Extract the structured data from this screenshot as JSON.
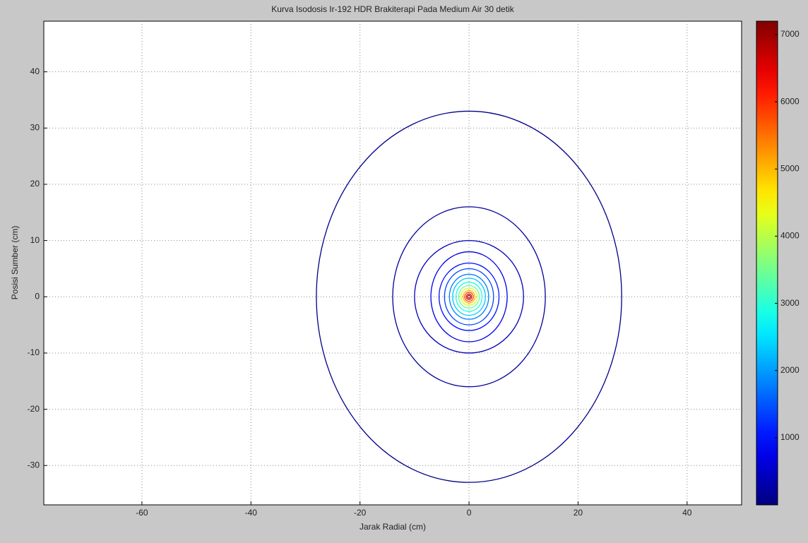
{
  "chart_data": {
    "type": "contour",
    "title": "Kurva Isodosis Ir-192 HDR Brakiterapi Pada Medium Air 30 detik",
    "x_label": "Jarak Radial (cm)",
    "y_label": "Posisi Sumber (cm)",
    "xlim": [
      -78,
      50
    ],
    "ylim": [
      -37,
      49
    ],
    "xticks": [
      -60,
      -40,
      -20,
      0,
      20,
      40
    ],
    "yticks": [
      -30,
      -20,
      -10,
      0,
      10,
      20,
      30,
      40
    ],
    "grid": true,
    "colormap": "jet",
    "clim": [
      0,
      7200
    ],
    "colorbar_ticks": [
      1000,
      2000,
      3000,
      4000,
      5000,
      6000,
      7000
    ],
    "contours": [
      {
        "level": 60,
        "rx": 28,
        "ry": 33
      },
      {
        "level": 200,
        "rx": 14,
        "ry": 16
      },
      {
        "level": 400,
        "rx": 10,
        "ry": 10
      },
      {
        "level": 700,
        "rx": 7,
        "ry": 8
      },
      {
        "level": 1000,
        "rx": 5.5,
        "ry": 6
      },
      {
        "level": 1400,
        "rx": 4.5,
        "ry": 5
      },
      {
        "level": 1800,
        "rx": 3.6,
        "ry": 4
      },
      {
        "level": 2300,
        "rx": 3,
        "ry": 3.3
      },
      {
        "level": 2900,
        "rx": 2.4,
        "ry": 2.6
      },
      {
        "level": 3500,
        "rx": 1.9,
        "ry": 2
      },
      {
        "level": 4200,
        "rx": 1.5,
        "ry": 1.5
      },
      {
        "level": 5000,
        "rx": 1.1,
        "ry": 1.1
      },
      {
        "level": 5800,
        "rx": 0.8,
        "ry": 0.8
      },
      {
        "level": 6500,
        "rx": 0.5,
        "ry": 0.5
      },
      {
        "level": 7100,
        "rx": 0.25,
        "ry": 0.25
      }
    ]
  }
}
